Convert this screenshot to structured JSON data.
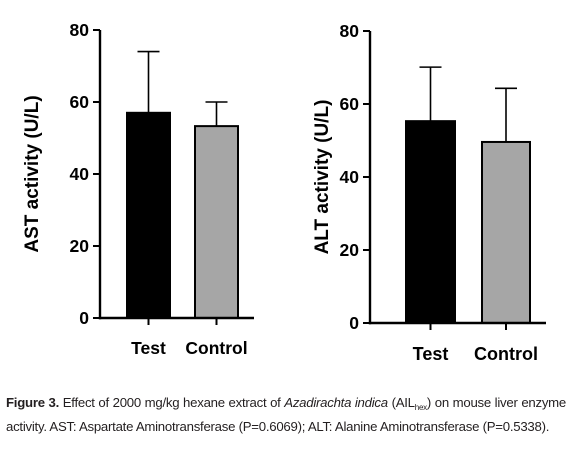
{
  "chart_data": [
    {
      "type": "bar",
      "ylabel": "AST activity (U/L)",
      "categories": [
        "Test",
        "Control"
      ],
      "values": [
        57,
        53.3
      ],
      "errors": [
        17,
        6.7
      ],
      "ylim": [
        0,
        80
      ],
      "yticks": [
        "0",
        "20",
        "40",
        "60",
        "80"
      ],
      "bar_colors": [
        "#000000",
        "#a6a6a6"
      ]
    },
    {
      "type": "bar",
      "ylabel": "ALT activity (U/L)",
      "categories": [
        "Test",
        "Control"
      ],
      "values": [
        55.3,
        49.6
      ],
      "errors": [
        14.8,
        14.7
      ],
      "ylim": [
        0,
        80
      ],
      "yticks": [
        "0",
        "20",
        "40",
        "60",
        "80"
      ],
      "bar_colors": [
        "#000000",
        "#a6a6a6"
      ]
    }
  ],
  "caption": {
    "figure_label": "Figure 3.",
    "text_1": "Effect of 2000 mg/kg hexane extract of",
    "species": "Azadirachta indica",
    "open_paren": "(AIL",
    "subscript": "hex",
    "text_2": ") on mouse liver enzyme activity. AST: Aspartate Aminotransferase (P=0.6069); ALT: Alanine Aminotransferase (P=0.5338)."
  }
}
